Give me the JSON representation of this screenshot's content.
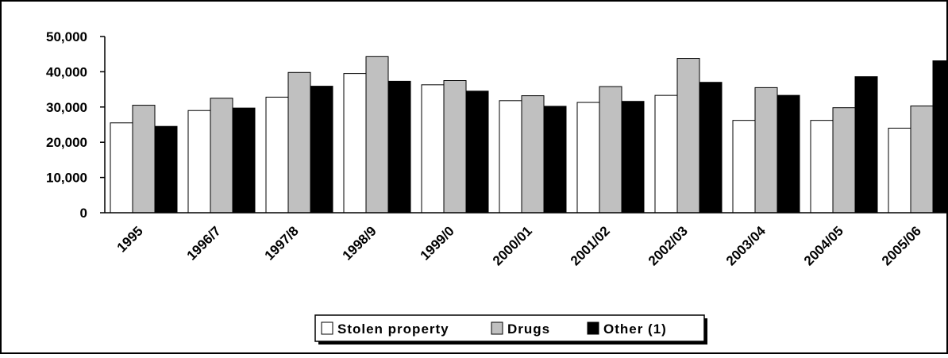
{
  "chart_data": {
    "type": "bar",
    "title": "",
    "xlabel": "",
    "ylabel": "",
    "categories": [
      "1995",
      "1996/7",
      "1997/8",
      "1998/9",
      "1999/0",
      "2000/01",
      "2001/02",
      "2002/03",
      "2003/04",
      "2004/05",
      "2005/06"
    ],
    "series": [
      {
        "name": "Stolen property",
        "color": "#ffffff",
        "values": [
          25500,
          29000,
          32800,
          39500,
          36300,
          31800,
          31300,
          33300,
          26200,
          26200,
          24000
        ]
      },
      {
        "name": "Drugs",
        "color": "#c0c0c0",
        "values": [
          30500,
          32500,
          39800,
          44300,
          37500,
          33200,
          35800,
          43800,
          35500,
          29800,
          30300
        ]
      },
      {
        "name": "Other (1)",
        "color": "#000000",
        "values": [
          24500,
          29700,
          35900,
          37300,
          34500,
          30200,
          31600,
          37000,
          33300,
          38600,
          43100
        ]
      }
    ],
    "ylim": [
      0,
      50000
    ],
    "yticks": [
      0,
      10000,
      20000,
      30000,
      40000,
      50000
    ],
    "ytick_labels": [
      "0",
      "10,000",
      "20,000",
      "30,000",
      "40,000",
      "50,000"
    ],
    "grid": false,
    "legend_position": "bottom-center"
  }
}
